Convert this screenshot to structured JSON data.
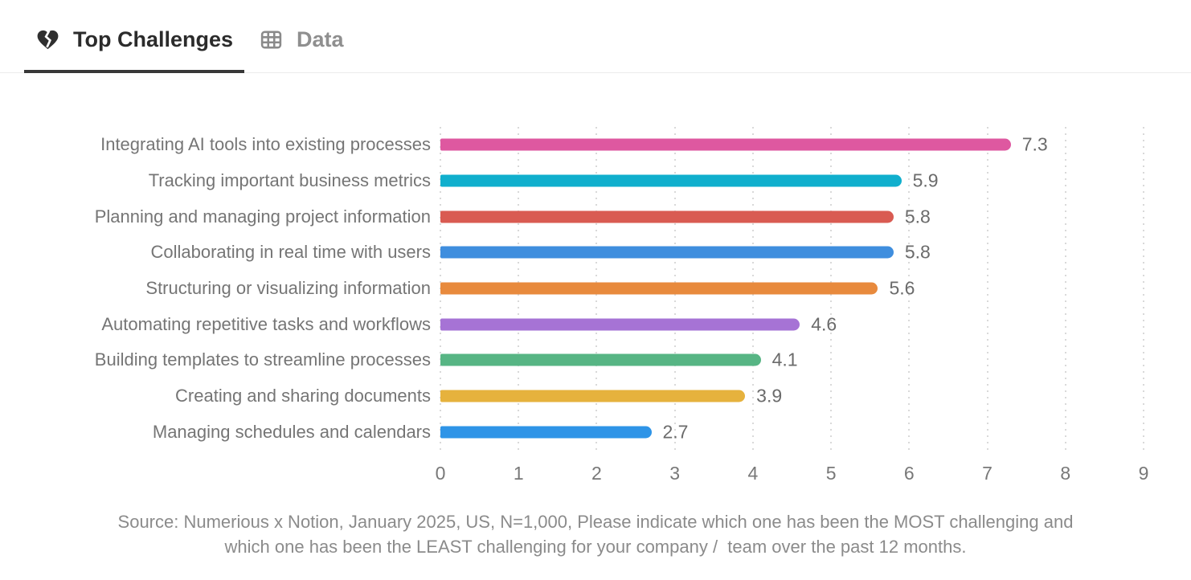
{
  "tabs": [
    {
      "label": "Top Challenges",
      "icon": "broken-heart-icon",
      "active": true
    },
    {
      "label": "Data",
      "icon": "table-icon",
      "active": false
    }
  ],
  "chart_data": {
    "type": "bar",
    "orientation": "horizontal",
    "title": "",
    "xlabel": "",
    "ylabel": "",
    "xlim": [
      0,
      9
    ],
    "x_ticks": [
      0,
      1,
      2,
      3,
      4,
      5,
      6,
      7,
      8,
      9
    ],
    "grid": "dotted-vertical",
    "categories": [
      "Integrating AI tools into existing processes",
      "Tracking important business metrics",
      "Planning and managing project information",
      "Collaborating in real time with users",
      "Structuring or visualizing information",
      "Automating repetitive tasks and workflows",
      "Building templates to streamline processes",
      "Creating and sharing documents",
      "Managing schedules and calendars"
    ],
    "values": [
      7.3,
      5.9,
      5.8,
      5.8,
      5.6,
      4.6,
      4.1,
      3.9,
      2.7
    ],
    "value_labels": [
      "7.3",
      "5.9",
      "5.8",
      "5.8",
      "5.6",
      "4.6",
      "4.1",
      "3.9",
      "2.7"
    ],
    "bar_colors": [
      "#de58a0",
      "#10afcd",
      "#d95b52",
      "#3f8ede",
      "#e88a3d",
      "#a673d5",
      "#57b584",
      "#e6b23d",
      "#2e94e7"
    ]
  },
  "source": {
    "line1": "Source: Numerious x Notion, January 2025, US, N=1,000, Please indicate which one has been the MOST challenging and",
    "line2": "which one has been the LEAST challenging for your company /  team over the past 12 months."
  },
  "colors": {
    "tab_active_text": "#2b2b2b",
    "tab_inactive_text": "#8f8f8f",
    "tab_underline": "#383838",
    "tabbar_border": "#ececec",
    "gridline": "#d9d9d9",
    "category_label": "#757575",
    "value_label": "#6b6b6b",
    "tick_label": "#787878",
    "source_text": "#8b8b8b"
  }
}
